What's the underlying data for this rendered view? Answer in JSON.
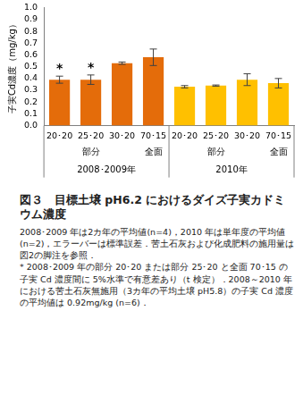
{
  "chart_data": {
    "type": "bar",
    "title": "図３　目標土壌 pH6.2 におけるダイズ子実カドミウム濃度",
    "y_label": "子実Cd濃度（mg/kg）",
    "categories": [
      "20･20",
      "25･20",
      "30･20",
      "70･15",
      "20･20",
      "25･20",
      "30･20",
      "70･15"
    ],
    "subcategories": [
      "部分",
      "部分",
      "部分",
      "全面",
      "部分",
      "部分",
      "部分",
      "全面"
    ],
    "groups": [
      "2008･2009年",
      "2008･2009年",
      "2008･2009年",
      "2008･2009年",
      "2010年",
      "2010年",
      "2010年",
      "2010年"
    ],
    "values": [
      0.39,
      0.39,
      0.53,
      0.58,
      0.33,
      0.34,
      0.39,
      0.36
    ],
    "error": [
      0.03,
      0.04,
      0.01,
      0.07,
      0.01,
      0.005,
      0.05,
      0.04
    ],
    "markers": [
      "*",
      "*",
      null,
      null,
      null,
      null,
      null,
      null
    ],
    "colors": [
      "#e46c0a",
      "#e46c0a",
      "#e46c0a",
      "#e46c0a",
      "#ffc000",
      "#ffc000",
      "#ffc000",
      "#ffc000"
    ],
    "ylim": [
      0,
      1.0
    ],
    "yticks": [
      {
        "value": 0,
        "label": "0.0"
      },
      {
        "value": 0.1,
        "label": "0.1"
      },
      {
        "value": 0.2,
        "label": "0.2"
      },
      {
        "value": 0.3,
        "label": "0.3"
      },
      {
        "value": 0.4,
        "label": "0.4"
      },
      {
        "value": 0.5,
        "label": "0.5"
      },
      {
        "value": 0.6,
        "label": "0.6"
      },
      {
        "value": 0.7,
        "label": "0.7"
      },
      {
        "value": 0.8,
        "label": "0.8"
      },
      {
        "value": 0.9,
        "label": "0.9"
      },
      {
        "value": 1.0,
        "label": "1.0"
      }
    ],
    "grid": false,
    "notes": [
      "2008･2009 年は2カ年の平均値(n=4)，2010 年は単年度の平均値(n=2)，エラーバーは標準誤差．苦土石灰および化成肥料の施用量は図2の脚注を参照．",
      "* 2008･2009 年の部分 20･20 または部分 25･20 と全面 70･15 の子実 Cd 濃度間に 5%水準で有意差あり（t 検定）．2008～2010 年における苦土石灰無施用（3カ年の平均土壌 pH5.8）の子実 Cd 濃度の平均値は 0.92mg/kg (n=6)．"
    ]
  }
}
